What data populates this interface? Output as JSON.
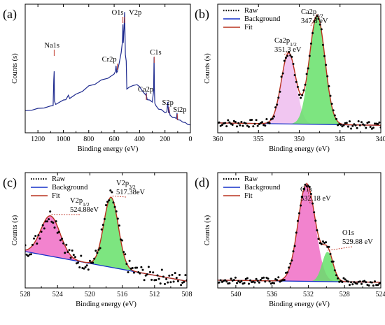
{
  "chart_data": [
    {
      "panel": "(a)",
      "type": "line",
      "xlabel": "Binding energy (eV)",
      "ylabel": "Counts (s)",
      "xlim": [
        1300,
        0
      ],
      "ylim": [
        0,
        100
      ],
      "xticks": [
        1200,
        1000,
        800,
        600,
        400,
        200,
        0
      ],
      "series": [
        {
          "values_x": [
            1300,
            1250,
            1200,
            1150,
            1100,
            1080,
            1075,
            1072,
            1070,
            1060,
            1000,
            980,
            960,
            950,
            900,
            850,
            800,
            750,
            700,
            650,
            600,
            590,
            585,
            580,
            575,
            560,
            545,
            535,
            531,
            528,
            522,
            518,
            515,
            512,
            505,
            500,
            480,
            450,
            420,
            400,
            380,
            360,
            350,
            347,
            345,
            340,
            320,
            300,
            290,
            286,
            283,
            280,
            270,
            250,
            230,
            200,
            185,
            178,
            172,
            168,
            160,
            140,
            120,
            110,
            105,
            100,
            80,
            60,
            40,
            20,
            0
          ],
          "values_y": [
            14,
            15,
            16,
            17,
            18,
            19,
            40,
            48,
            22,
            20,
            23,
            24,
            27,
            25,
            28,
            31,
            35,
            37,
            40,
            42,
            45,
            48,
            52,
            47,
            47,
            55,
            63,
            73,
            87,
            72,
            83,
            98,
            82,
            62,
            56,
            33,
            34,
            36,
            36,
            35,
            31,
            29,
            27,
            30,
            26,
            24,
            23,
            22,
            30,
            60,
            32,
            21,
            18,
            16,
            15,
            13,
            13,
            22,
            12,
            16,
            10,
            9,
            8,
            8,
            12,
            7,
            6,
            5,
            4,
            3,
            2
          ]
        }
      ],
      "annotations": [
        {
          "text": "Na1s",
          "x": 1072
        },
        {
          "text": "O1s",
          "x": 531
        },
        {
          "text": "V2p",
          "x": 517
        },
        {
          "text": "Cr2p",
          "x": 575
        },
        {
          "text": "C1s",
          "x": 285
        },
        {
          "text": "Ca2p",
          "x": 347
        },
        {
          "text": "S2p",
          "x": 168
        },
        {
          "text": "Si2p",
          "x": 103
        }
      ]
    },
    {
      "panel": "(b)",
      "type": "line",
      "xlabel": "Binding energy (eV)",
      "ylabel": "Counts (s)",
      "xlim": [
        360,
        340
      ],
      "ylim": [
        0,
        100
      ],
      "xticks": [
        360,
        355,
        350,
        345,
        340
      ],
      "legend": [
        "Raw",
        "Background",
        "Fit"
      ],
      "legend_position": "top-left",
      "background_line": {
        "x": [
          360,
          340
        ],
        "y": [
          4,
          2
        ]
      },
      "peaks": [
        {
          "label_main": "Ca2p",
          "label_sub": "1/2",
          "value_text": "351.3 eV",
          "center": 351.3,
          "height": 60,
          "sigma": 0.9,
          "color": "#efbcef"
        },
        {
          "label_main": "Ca2p",
          "label_sub": "3/2",
          "value_text": "347.8 eV",
          "center": 347.8,
          "height": 92,
          "sigma": 0.95,
          "color": "#66e06a"
        }
      ]
    },
    {
      "panel": "(c)",
      "type": "line",
      "xlabel": "Binding energy (eV)",
      "ylabel": "Counts (s)",
      "xlim": [
        528,
        508
      ],
      "ylim": [
        0,
        100
      ],
      "xticks": [
        528,
        524,
        520,
        516,
        512,
        508
      ],
      "legend": [
        "Raw",
        "Background",
        "Fit"
      ],
      "legend_position": "top-left",
      "background_line": {
        "x": [
          528,
          508
        ],
        "y": [
          30,
          2
        ]
      },
      "peaks": [
        {
          "label_main": "V2p",
          "label_sub": "1/2",
          "value_text": "524.88eV",
          "center": 524.88,
          "height": 38,
          "sigma": 1.2,
          "color": "#f06dc6"
        },
        {
          "label_main": "V2p",
          "label_sub": "3/2",
          "value_text": "517.38eV",
          "center": 517.38,
          "height": 66,
          "sigma": 0.9,
          "color": "#66e06a"
        }
      ]
    },
    {
      "panel": "(d)",
      "type": "line",
      "xlabel": "Binding energy (eV)",
      "ylabel": "Counts (s)",
      "xlim": [
        542,
        524
      ],
      "ylim": [
        0,
        100
      ],
      "xticks": [
        540,
        536,
        532,
        528,
        524
      ],
      "legend": [
        "Raw",
        "Background",
        "Fit"
      ],
      "legend_position": "top-left",
      "background_line": {
        "x": [
          542,
          524
        ],
        "y": [
          3,
          1
        ]
      },
      "peaks": [
        {
          "label_main": "O1s",
          "label_sub": "",
          "value_text": "532.18 eV",
          "center": 532.18,
          "height": 92,
          "sigma": 0.95,
          "color": "#f06dc6"
        },
        {
          "label_main": "O1s",
          "label_sub": "",
          "value_text": "529.88 eV",
          "center": 529.88,
          "height": 28,
          "sigma": 0.6,
          "color": "#66e06a"
        }
      ]
    }
  ]
}
